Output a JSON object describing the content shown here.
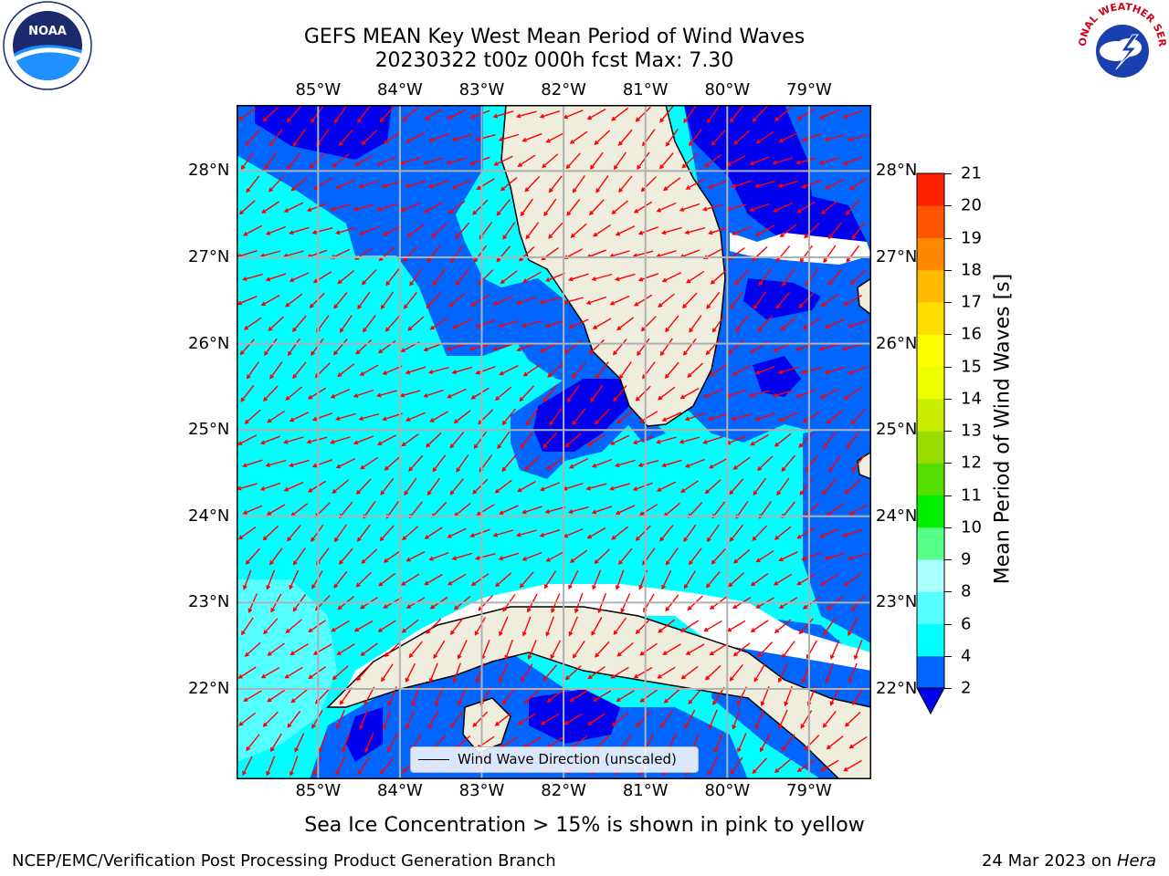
{
  "header": {
    "title_line1": "GEFS MEAN Key West Mean Period of Wind Waves",
    "title_line2": "20230322 t00z 000h fcst   Max: 7.30"
  },
  "logos": {
    "left": {
      "name": "noaa-logo",
      "text": "NOAA"
    },
    "right": {
      "name": "nws-logo",
      "text": "NATIONAL WEATHER SERVICE"
    }
  },
  "map": {
    "lon_labels": [
      "85°W",
      "84°W",
      "83°W",
      "82°W",
      "81°W",
      "80°W",
      "79°W"
    ],
    "lon_values": [
      -85,
      -84,
      -83,
      -82,
      -81,
      -80,
      -79
    ],
    "lat_labels": [
      "22°N",
      "23°N",
      "24°N",
      "25°N",
      "26°N",
      "27°N",
      "28°N"
    ],
    "lat_values": [
      22,
      23,
      24,
      25,
      26,
      27,
      28
    ],
    "legend_label": "Wind Wave Direction (unscaled)",
    "colors": {
      "land": "#efedde",
      "level_2_4": "#0066ff",
      "level_4_6": "#00ffff",
      "level_6_8": "#55ffff",
      "below_2": "#0000ee",
      "arrow": "#ff0000"
    }
  },
  "colorbar": {
    "label": "Mean Period of Wind Waves [s]",
    "ticks": [
      "2",
      "4",
      "6",
      "8",
      "9",
      "10",
      "11",
      "12",
      "13",
      "14",
      "15",
      "16",
      "17",
      "18",
      "19",
      "20",
      "21"
    ],
    "levels": [
      2,
      4,
      6,
      8,
      9,
      10,
      11,
      12,
      13,
      14,
      15,
      16,
      17,
      18,
      19,
      20,
      21
    ],
    "colors": [
      "#0066ff",
      "#00ffff",
      "#55ffff",
      "#aaffff",
      "#55ff88",
      "#00ee00",
      "#55dd00",
      "#99dd00",
      "#ccee00",
      "#eeff00",
      "#ffff00",
      "#ffdd00",
      "#ffbb00",
      "#ff8800",
      "#ff5500",
      "#ff2200"
    ],
    "under_color": "#0000ee"
  },
  "footer": {
    "note": "Sea Ice Concentration > 15% is shown in pink to yellow",
    "left": "NCEP/EMC/Verification Post Processing Product Generation Branch",
    "right_date": "24 Mar 2023 on ",
    "right_host": "Hera"
  }
}
